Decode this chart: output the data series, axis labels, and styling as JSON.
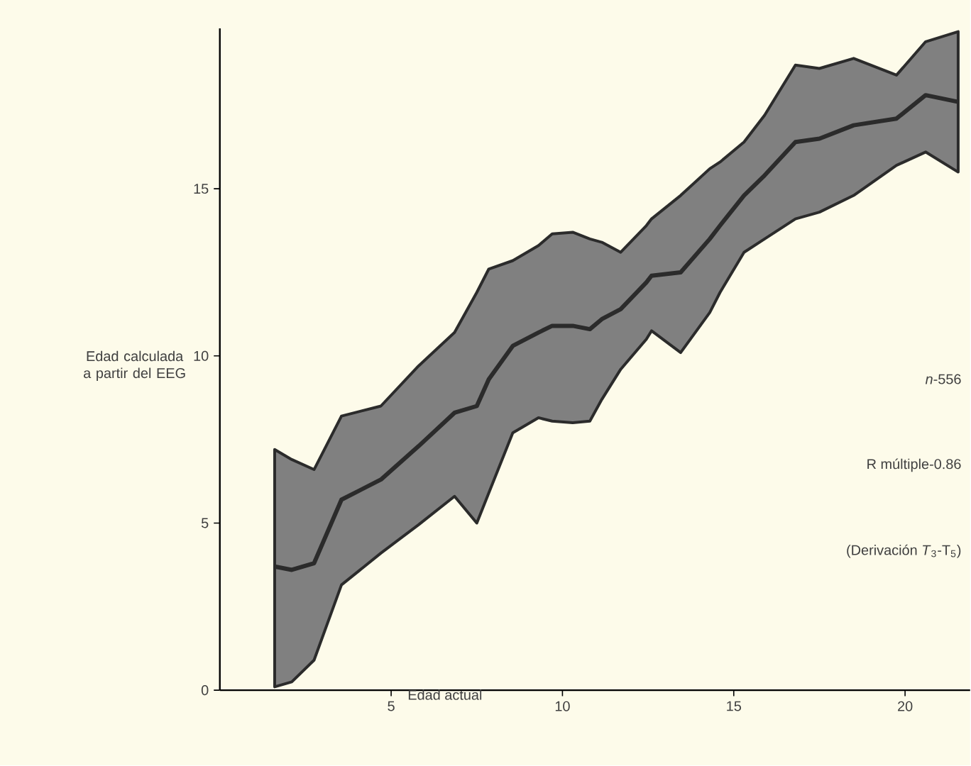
{
  "chart_data": {
    "type": "line",
    "xlabel": "Edad actual",
    "ylabel": "Edad calculada a partir del EEG",
    "annotations": [
      "*n*-556",
      "R múltiple-0.86",
      "(Derivación *T*$_{3}$-T$_{5}$)"
    ],
    "series": [
      {
        "color": "#2b2b2b",
        "x": [
          1.6,
          2.1,
          2.75,
          3.55,
          4.7,
          5.8,
          6.85,
          7.5,
          7.85,
          8.55,
          9.3,
          9.7,
          10.3,
          10.8,
          11.15,
          11.7,
          12.45,
          12.6,
          13.45,
          14.3,
          14.6,
          15.3,
          15.9,
          16.8,
          17.5,
          18.5,
          19.75,
          20.6,
          21.55
        ],
        "values": [
          3.7,
          3.6,
          3.8,
          5.7,
          6.3,
          7.3,
          8.3,
          8.5,
          9.3,
          10.3,
          10.7,
          10.9,
          10.9,
          10.8,
          11.1,
          11.4,
          12.2,
          12.4,
          12.5,
          13.5,
          13.9,
          14.8,
          15.4,
          16.4,
          16.5,
          16.9,
          17.1,
          17.8,
          17.6
        ],
        "lower": [
          0.1,
          0.25,
          0.9,
          3.15,
          4.1,
          4.95,
          5.8,
          5.0,
          5.9,
          7.7,
          8.15,
          8.05,
          8.0,
          8.05,
          8.7,
          9.6,
          10.5,
          10.75,
          10.1,
          11.3,
          11.9,
          13.1,
          13.5,
          14.1,
          14.3,
          14.8,
          15.7,
          16.1,
          15.5
        ],
        "upper": [
          7.2,
          6.9,
          6.6,
          8.2,
          8.5,
          9.7,
          10.7,
          11.9,
          12.6,
          12.85,
          13.3,
          13.65,
          13.7,
          13.5,
          13.4,
          13.1,
          13.9,
          14.1,
          14.8,
          15.6,
          15.8,
          16.4,
          17.2,
          18.7,
          18.6,
          18.9,
          18.4,
          19.4,
          19.7
        ]
      }
    ],
    "xlim": [
      0,
      21.9
    ],
    "ylim": [
      0,
      19.8
    ],
    "xticks": [
      5,
      10,
      15,
      20
    ],
    "yticks": [
      0,
      5,
      10,
      15
    ],
    "grid": false,
    "marker": "none",
    "line_style": "solid"
  }
}
